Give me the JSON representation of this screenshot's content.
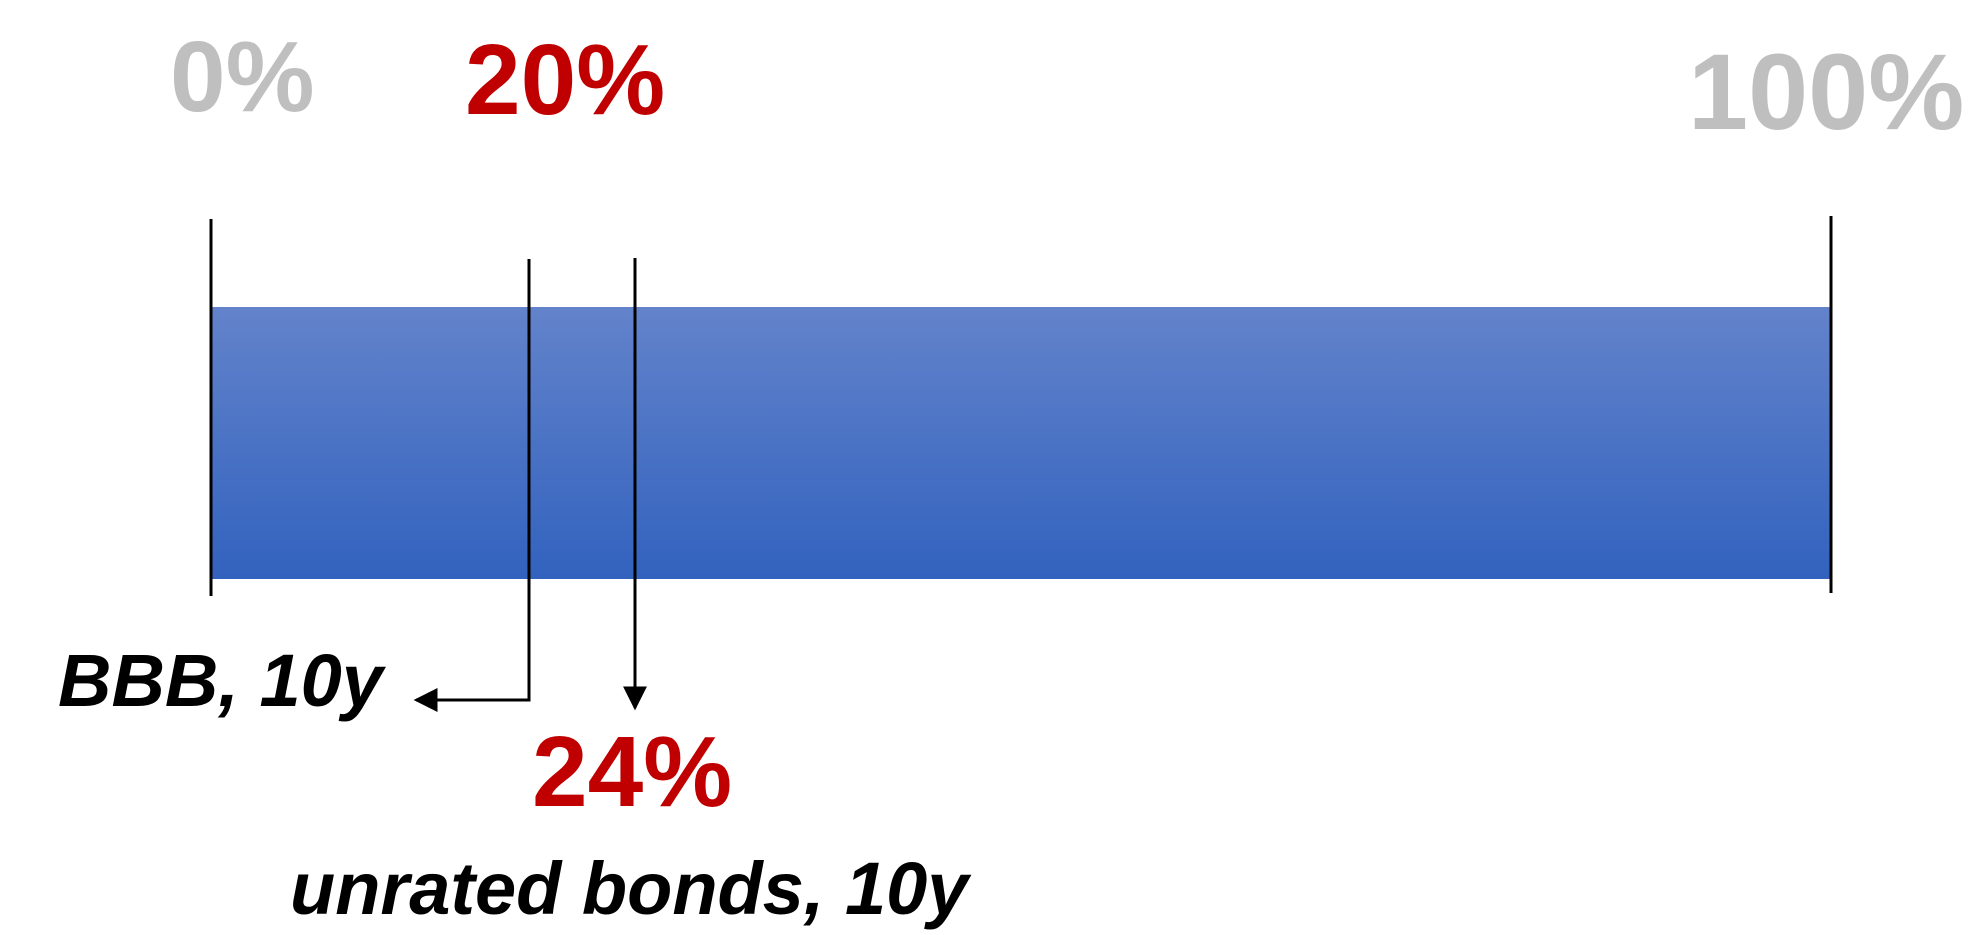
{
  "scale": {
    "min_label": "0%",
    "max_label": "100%",
    "min_value": 0,
    "max_value": 100
  },
  "markers": [
    {
      "id": "bbb",
      "value": 20,
      "value_label": "20%",
      "description": "BBB, 10y"
    },
    {
      "id": "unrated",
      "value": 24,
      "value_label": "24%",
      "description": "unrated bonds, 10y"
    }
  ],
  "colors": {
    "bar_top": "#6383cb",
    "bar_bottom": "#3262be",
    "highlight_red": "#c00000",
    "muted_gray": "#bfbfbf",
    "line_black": "#000000"
  }
}
